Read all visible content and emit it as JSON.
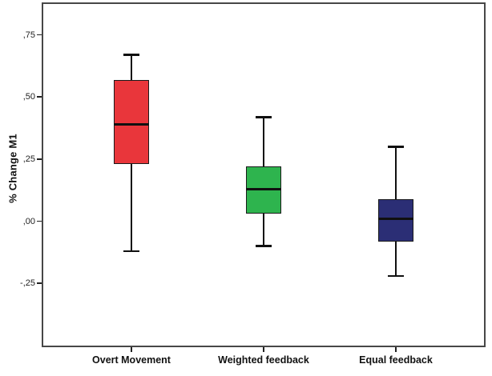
{
  "chart_data": {
    "type": "box",
    "title": "",
    "ylabel": "% Change M1",
    "xlabel": "",
    "grid": false,
    "legend": "none",
    "y_axis": {
      "min": -0.5,
      "max": 0.875,
      "ticks": [
        {
          "label": ",75",
          "value": 0.75
        },
        {
          "label": ",50",
          "value": 0.5
        },
        {
          "label": ",25",
          "value": 0.25
        },
        {
          "label": ",00",
          "value": 0.0
        },
        {
          "label": "-,25",
          "value": -0.25
        }
      ]
    },
    "categories": [
      "Overt Movement",
      "Weighted feedback",
      "Equal feedback"
    ],
    "series": [
      {
        "category": "Overt Movement",
        "color": "#e9363b",
        "whisker_low": -0.12,
        "q1": 0.23,
        "median": 0.39,
        "q3": 0.57,
        "whisker_high": 0.67
      },
      {
        "category": "Weighted feedback",
        "color": "#2eb44e",
        "whisker_low": -0.1,
        "q1": 0.03,
        "median": 0.13,
        "q3": 0.22,
        "whisker_high": 0.42
      },
      {
        "category": "Equal feedback",
        "color": "#2b2e75",
        "whisker_low": -0.22,
        "q1": -0.08,
        "median": 0.01,
        "q3": 0.09,
        "whisker_high": 0.3
      }
    ]
  }
}
